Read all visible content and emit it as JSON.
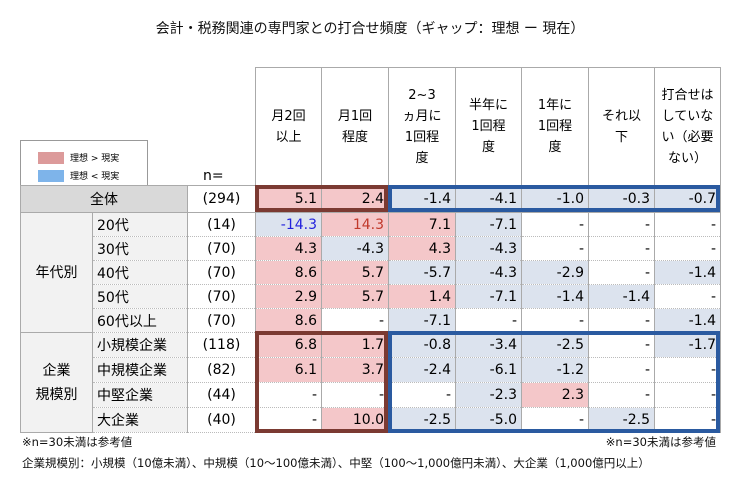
{
  "title": "会計・税務関連の専門家との打合せ頻度（ギャップ：理想 ー 現在）",
  "legend": [
    {
      "label": "理想 > 現実",
      "color": "#dc9a9a"
    },
    {
      "label": "理想 < 現実",
      "color": "#7eb4ea"
    }
  ],
  "n_label": "n=",
  "chart_data": {
    "type": "table",
    "columns": [
      "月2回以上",
      "月1回程度",
      "2~3ヵ月に1回程度",
      "半年に1回程度",
      "1年に1回程度",
      "それ以下",
      "打合せはしていない（必要ない）"
    ],
    "colors": {
      "positive_fill": "#f4c7c9",
      "negative_fill": "#dce3ee",
      "highlight_box_left": "#7b3a32",
      "highlight_box_right": "#2a5aa0"
    },
    "rows": [
      {
        "group": "",
        "label": "全体",
        "n": "(294)",
        "values": [
          "5.1",
          "2.4",
          "-1.4",
          "-4.1",
          "-1.0",
          "-0.3",
          "-0.7"
        ]
      },
      {
        "group": "年代別",
        "label": "20代",
        "n": "(14)",
        "values": [
          "-14.3",
          "14.3",
          "7.1",
          "-7.1",
          "-",
          "-",
          "-"
        ]
      },
      {
        "group": "年代別",
        "label": "30代",
        "n": "(70)",
        "values": [
          "4.3",
          "-4.3",
          "4.3",
          "-4.3",
          "-",
          "-",
          "-"
        ]
      },
      {
        "group": "年代別",
        "label": "40代",
        "n": "(70)",
        "values": [
          "8.6",
          "5.7",
          "-5.7",
          "-4.3",
          "-2.9",
          "-",
          "-1.4"
        ]
      },
      {
        "group": "年代別",
        "label": "50代",
        "n": "(70)",
        "values": [
          "2.9",
          "5.7",
          "1.4",
          "-7.1",
          "-1.4",
          "-1.4",
          "-"
        ]
      },
      {
        "group": "年代別",
        "label": "60代以上",
        "n": "(70)",
        "values": [
          "8.6",
          "-",
          "-7.1",
          "-",
          "-",
          "-",
          "-1.4"
        ]
      },
      {
        "group": "企業規模別",
        "label": "小規模企業",
        "n": "(118)",
        "values": [
          "6.8",
          "1.7",
          "-0.8",
          "-3.4",
          "-2.5",
          "-",
          "-1.7"
        ]
      },
      {
        "group": "企業規模別",
        "label": "中規模企業",
        "n": "(82)",
        "values": [
          "6.1",
          "3.7",
          "-2.4",
          "-6.1",
          "-1.2",
          "-",
          "-"
        ]
      },
      {
        "group": "企業規模別",
        "label": "中堅企業",
        "n": "(44)",
        "values": [
          "-",
          "-",
          "-",
          "-2.3",
          "2.3",
          "-",
          "-"
        ]
      },
      {
        "group": "企業規模別",
        "label": "大企業",
        "n": "(40)",
        "values": [
          "-",
          "10.0",
          "-2.5",
          "-5.0",
          "-",
          "-2.5",
          "-"
        ]
      }
    ],
    "groups": [
      {
        "name": "年代別",
        "display": [
          "年代別"
        ]
      },
      {
        "name": "企業規模別",
        "display": [
          "企業",
          "規模別"
        ]
      }
    ]
  },
  "notes": {
    "left": "※n=30未満は参考値",
    "right": "※n=30未満は参考値",
    "footer": "企業規模別：小規模（10億未満）、中規模（10～100億未満）、中堅（100～1,000億円未満）、大企業（1,000億円以上）"
  }
}
